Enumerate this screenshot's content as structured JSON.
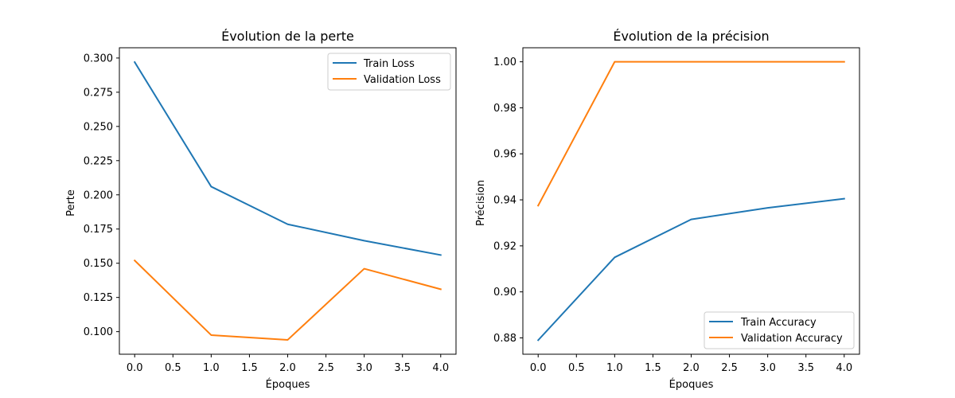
{
  "chart_data": [
    {
      "type": "line",
      "title": "Évolution de la perte",
      "xlabel": "Époques",
      "ylabel": "Perte",
      "x": [
        0,
        1,
        2,
        3,
        4
      ],
      "xlim": [
        -0.2,
        4.2
      ],
      "ylim": [
        0.0835,
        0.3075
      ],
      "xticks": [
        0,
        0.5,
        1,
        1.5,
        2,
        2.5,
        3,
        3.5,
        4
      ],
      "xtick_labels": [
        "0.0",
        "0.5",
        "1.0",
        "1.5",
        "2.0",
        "2.5",
        "3.0",
        "3.5",
        "4.0"
      ],
      "yticks": [
        0.1,
        0.125,
        0.15,
        0.175,
        0.2,
        0.225,
        0.25,
        0.275,
        0.3
      ],
      "ytick_labels": [
        "0.100",
        "0.125",
        "0.150",
        "0.175",
        "0.200",
        "0.225",
        "0.250",
        "0.275",
        "0.300"
      ],
      "grid": false,
      "legend": "upper right",
      "series": [
        {
          "name": "Train Loss",
          "color": "#1f77b4",
          "values": [
            0.297,
            0.206,
            0.1785,
            0.1665,
            0.156
          ]
        },
        {
          "name": "Validation Loss",
          "color": "#ff7f0e",
          "values": [
            0.152,
            0.0975,
            0.094,
            0.146,
            0.131
          ]
        }
      ]
    },
    {
      "type": "line",
      "title": "Évolution de la précision",
      "xlabel": "Époques",
      "ylabel": "Précision",
      "x": [
        0,
        1,
        2,
        3,
        4
      ],
      "xlim": [
        -0.2,
        4.2
      ],
      "ylim": [
        0.8729,
        1.0061
      ],
      "xticks": [
        0,
        0.5,
        1,
        1.5,
        2,
        2.5,
        3,
        3.5,
        4
      ],
      "xtick_labels": [
        "0.0",
        "0.5",
        "1.0",
        "1.5",
        "2.0",
        "2.5",
        "3.0",
        "3.5",
        "4.0"
      ],
      "yticks": [
        0.88,
        0.9,
        0.92,
        0.94,
        0.96,
        0.98,
        1.0
      ],
      "ytick_labels": [
        "0.88",
        "0.90",
        "0.92",
        "0.94",
        "0.96",
        "0.98",
        "1.00"
      ],
      "grid": false,
      "legend": "lower right",
      "series": [
        {
          "name": "Train Accuracy",
          "color": "#1f77b4",
          "values": [
            0.879,
            0.915,
            0.9315,
            0.9365,
            0.9405
          ]
        },
        {
          "name": "Validation Accuracy",
          "color": "#ff7f0e",
          "values": [
            0.9375,
            1.0,
            1.0,
            1.0,
            1.0
          ]
        }
      ]
    }
  ]
}
